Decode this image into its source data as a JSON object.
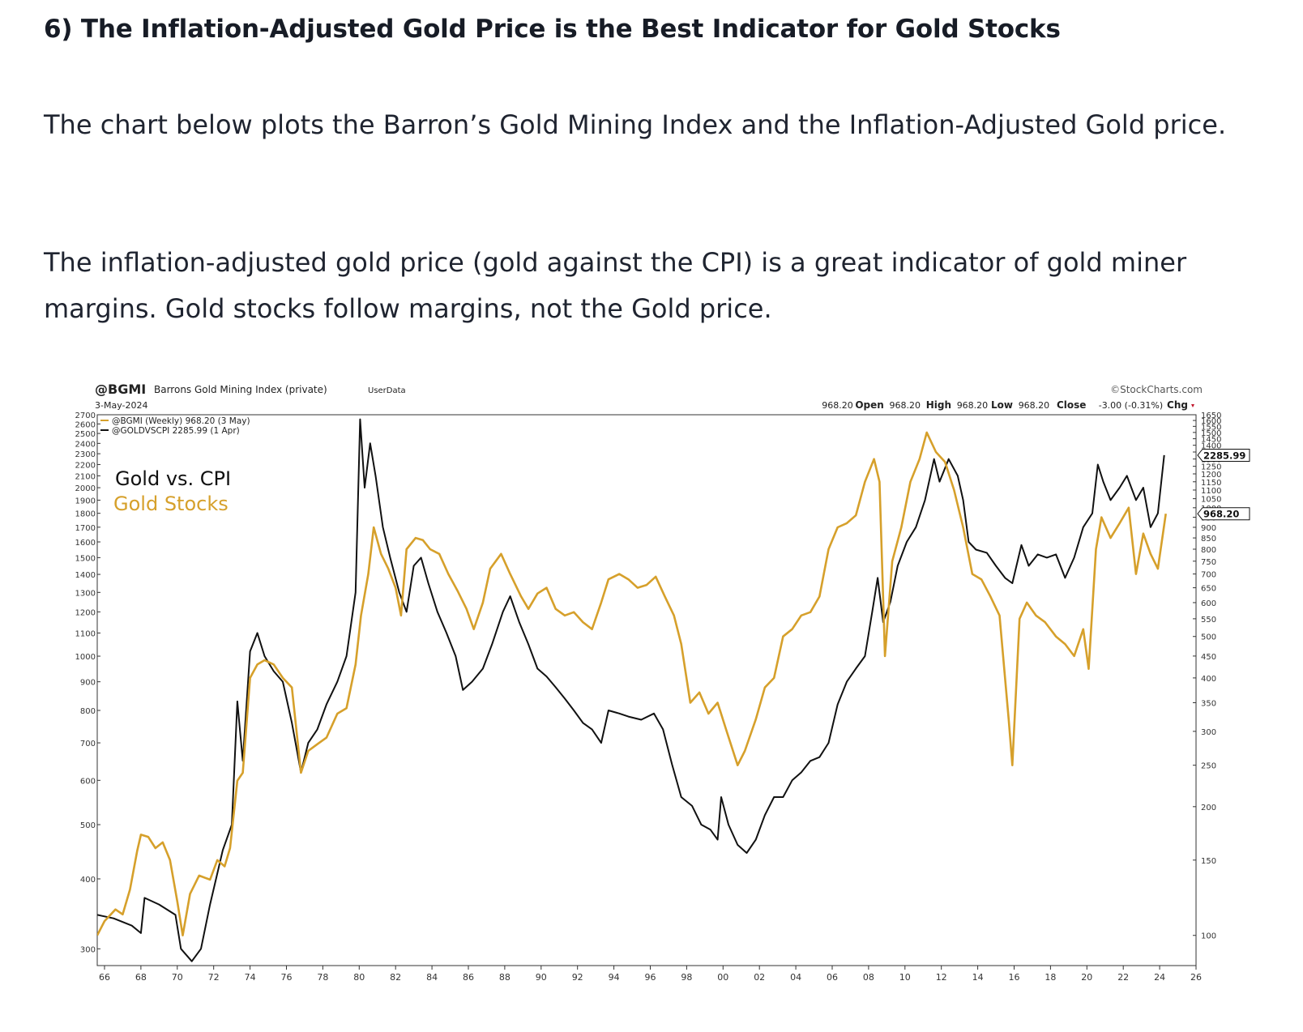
{
  "article": {
    "heading": "6) The Inflation-Adjusted Gold Price is the Best Indicator for Gold Stocks",
    "paragraph1": "The chart below plots the Barron’s Gold Mining Index and the Inflation-Adjusted Gold price.",
    "paragraph2": "The inflation-adjusted gold price (gold against the CPI) is a great indicator of gold miner margins. Gold stocks follow margins, not the Gold price."
  },
  "chart_header": {
    "symbol": "@BGMI",
    "name": "Barrons Gold Mining Index (private)",
    "source_tag": "UserData",
    "date": "3-May-2024",
    "watermark": "©StockCharts.com",
    "quote": [
      {
        "label": "Open",
        "value": "968.20"
      },
      {
        "label": "High",
        "value": "968.20"
      },
      {
        "label": "Low",
        "value": "968.20"
      },
      {
        "label": "Close",
        "value": "968.20"
      },
      {
        "label": "Chg",
        "value": "-3.00 (-0.31%)"
      }
    ],
    "legend_lines": [
      {
        "text": "@BGMI (Weekly) 968.20 (3 May)",
        "color": "#d6a02b"
      },
      {
        "text": "@GOLDVSCPI 2285.99 (1 Apr)",
        "color": "#111111"
      }
    ],
    "annotation_black": "Gold vs. CPI",
    "annotation_gold": "Gold Stocks",
    "right_tag_black": "2285.99",
    "right_tag_gold": "968.20"
  },
  "colors": {
    "gold": "#d6a02b",
    "black": "#111111",
    "axis": "#333333",
    "grid": "#e6e6e6",
    "down_arrow": "#c0132a"
  },
  "chart_data": {
    "type": "line",
    "title": "",
    "xlabel": "",
    "ylabel": "",
    "y_scale": "log",
    "grid": false,
    "x_ticks": [
      "66",
      "68",
      "70",
      "72",
      "74",
      "76",
      "78",
      "80",
      "82",
      "84",
      "86",
      "88",
      "90",
      "92",
      "94",
      "96",
      "98",
      "00",
      "02",
      "04",
      "06",
      "08",
      "10",
      "12",
      "14",
      "16",
      "18",
      "20",
      "22",
      "24",
      "26"
    ],
    "x_range": [
      1965.6,
      2026.0
    ],
    "left_axis": {
      "applies_to": "@GOLDVSCPI",
      "range": [
        280,
        2700
      ],
      "ticks": [
        300,
        400,
        500,
        600,
        700,
        800,
        900,
        1000,
        1100,
        1200,
        1300,
        1400,
        1500,
        1600,
        1700,
        1800,
        1900,
        2000,
        2100,
        2200,
        2300,
        2400,
        2500,
        2600,
        2700
      ]
    },
    "right_axis": {
      "applies_to": "@BGMI",
      "range": [
        85,
        1650
      ],
      "ticks": [
        100,
        150,
        200,
        250,
        300,
        350,
        400,
        450,
        500,
        550,
        600,
        650,
        700,
        750,
        800,
        850,
        900,
        950,
        1000,
        1050,
        1100,
        1150,
        1200,
        1250,
        1300,
        1350,
        1400,
        1450,
        1500,
        1550,
        1600,
        1650
      ]
    },
    "series": [
      {
        "name": "@GOLDVSCPI",
        "axis": "left",
        "color": "#111111",
        "points": [
          [
            1965.6,
            345
          ],
          [
            1966.5,
            340
          ],
          [
            1967.5,
            330
          ],
          [
            1968.0,
            320
          ],
          [
            1968.2,
            370
          ],
          [
            1969.0,
            360
          ],
          [
            1969.9,
            345
          ],
          [
            1970.2,
            300
          ],
          [
            1970.8,
            285
          ],
          [
            1971.3,
            300
          ],
          [
            1971.8,
            360
          ],
          [
            1972.5,
            450
          ],
          [
            1973.0,
            500
          ],
          [
            1973.3,
            830
          ],
          [
            1973.6,
            650
          ],
          [
            1974.0,
            1020
          ],
          [
            1974.4,
            1100
          ],
          [
            1974.8,
            1000
          ],
          [
            1975.3,
            940
          ],
          [
            1975.8,
            900
          ],
          [
            1976.3,
            760
          ],
          [
            1976.8,
            620
          ],
          [
            1977.2,
            700
          ],
          [
            1977.7,
            740
          ],
          [
            1978.2,
            820
          ],
          [
            1978.8,
            900
          ],
          [
            1979.3,
            1000
          ],
          [
            1979.8,
            1300
          ],
          [
            1980.05,
            2650
          ],
          [
            1980.3,
            2000
          ],
          [
            1980.6,
            2400
          ],
          [
            1980.9,
            2100
          ],
          [
            1981.3,
            1700
          ],
          [
            1981.7,
            1500
          ],
          [
            1982.2,
            1300
          ],
          [
            1982.6,
            1200
          ],
          [
            1983.0,
            1450
          ],
          [
            1983.4,
            1500
          ],
          [
            1983.8,
            1350
          ],
          [
            1984.3,
            1200
          ],
          [
            1984.8,
            1100
          ],
          [
            1985.3,
            1000
          ],
          [
            1985.7,
            870
          ],
          [
            1986.2,
            900
          ],
          [
            1986.8,
            950
          ],
          [
            1987.3,
            1050
          ],
          [
            1987.9,
            1200
          ],
          [
            1988.3,
            1280
          ],
          [
            1988.8,
            1150
          ],
          [
            1989.3,
            1050
          ],
          [
            1989.8,
            950
          ],
          [
            1990.3,
            920
          ],
          [
            1990.8,
            880
          ],
          [
            1991.3,
            840
          ],
          [
            1991.8,
            800
          ],
          [
            1992.3,
            760
          ],
          [
            1992.8,
            740
          ],
          [
            1993.3,
            700
          ],
          [
            1993.7,
            800
          ],
          [
            1994.3,
            790
          ],
          [
            1994.8,
            780
          ],
          [
            1995.5,
            770
          ],
          [
            1996.2,
            790
          ],
          [
            1996.7,
            740
          ],
          [
            1997.2,
            640
          ],
          [
            1997.7,
            560
          ],
          [
            1998.3,
            540
          ],
          [
            1998.8,
            500
          ],
          [
            1999.3,
            490
          ],
          [
            1999.7,
            470
          ],
          [
            1999.9,
            560
          ],
          [
            2000.3,
            500
          ],
          [
            2000.8,
            460
          ],
          [
            2001.3,
            445
          ],
          [
            2001.8,
            470
          ],
          [
            2002.3,
            520
          ],
          [
            2002.8,
            560
          ],
          [
            2003.3,
            560
          ],
          [
            2003.8,
            600
          ],
          [
            2004.3,
            620
          ],
          [
            2004.8,
            650
          ],
          [
            2005.3,
            660
          ],
          [
            2005.8,
            700
          ],
          [
            2006.3,
            820
          ],
          [
            2006.8,
            900
          ],
          [
            2007.3,
            950
          ],
          [
            2007.8,
            1000
          ],
          [
            2008.2,
            1200
          ],
          [
            2008.5,
            1380
          ],
          [
            2008.8,
            1150
          ],
          [
            2009.2,
            1250
          ],
          [
            2009.6,
            1450
          ],
          [
            2010.1,
            1600
          ],
          [
            2010.6,
            1700
          ],
          [
            2011.1,
            1900
          ],
          [
            2011.6,
            2250
          ],
          [
            2011.9,
            2050
          ],
          [
            2012.4,
            2250
          ],
          [
            2012.9,
            2100
          ],
          [
            2013.2,
            1900
          ],
          [
            2013.5,
            1600
          ],
          [
            2013.9,
            1550
          ],
          [
            2014.5,
            1530
          ],
          [
            2015.0,
            1450
          ],
          [
            2015.5,
            1380
          ],
          [
            2015.9,
            1350
          ],
          [
            2016.4,
            1580
          ],
          [
            2016.8,
            1450
          ],
          [
            2017.3,
            1520
          ],
          [
            2017.8,
            1500
          ],
          [
            2018.3,
            1520
          ],
          [
            2018.8,
            1380
          ],
          [
            2019.3,
            1500
          ],
          [
            2019.8,
            1700
          ],
          [
            2020.3,
            1800
          ],
          [
            2020.6,
            2200
          ],
          [
            2020.9,
            2050
          ],
          [
            2021.3,
            1900
          ],
          [
            2021.8,
            2000
          ],
          [
            2022.2,
            2100
          ],
          [
            2022.7,
            1900
          ],
          [
            2023.1,
            2000
          ],
          [
            2023.5,
            1700
          ],
          [
            2023.9,
            1800
          ],
          [
            2024.25,
            2285.99
          ]
        ]
      },
      {
        "name": "@BGMI",
        "axis": "right",
        "color": "#d6a02b",
        "points": [
          [
            1965.6,
            100
          ],
          [
            1966.0,
            108
          ],
          [
            1966.6,
            115
          ],
          [
            1967.0,
            112
          ],
          [
            1967.4,
            128
          ],
          [
            1967.8,
            158
          ],
          [
            1968.0,
            172
          ],
          [
            1968.4,
            170
          ],
          [
            1968.8,
            160
          ],
          [
            1969.2,
            165
          ],
          [
            1969.6,
            150
          ],
          [
            1970.0,
            120
          ],
          [
            1970.3,
            100
          ],
          [
            1970.7,
            125
          ],
          [
            1971.2,
            138
          ],
          [
            1971.8,
            135
          ],
          [
            1972.2,
            150
          ],
          [
            1972.6,
            145
          ],
          [
            1972.9,
            160
          ],
          [
            1973.3,
            230
          ],
          [
            1973.6,
            240
          ],
          [
            1974.0,
            400
          ],
          [
            1974.4,
            430
          ],
          [
            1974.8,
            440
          ],
          [
            1975.3,
            430
          ],
          [
            1975.8,
            400
          ],
          [
            1976.3,
            380
          ],
          [
            1976.8,
            240
          ],
          [
            1977.2,
            270
          ],
          [
            1977.7,
            280
          ],
          [
            1978.2,
            290
          ],
          [
            1978.8,
            330
          ],
          [
            1979.3,
            340
          ],
          [
            1979.8,
            430
          ],
          [
            1980.1,
            560
          ],
          [
            1980.5,
            700
          ],
          [
            1980.8,
            900
          ],
          [
            1981.2,
            780
          ],
          [
            1981.6,
            720
          ],
          [
            1982.0,
            650
          ],
          [
            1982.3,
            560
          ],
          [
            1982.6,
            800
          ],
          [
            1983.1,
            850
          ],
          [
            1983.5,
            840
          ],
          [
            1983.9,
            800
          ],
          [
            1984.4,
            780
          ],
          [
            1984.9,
            700
          ],
          [
            1985.4,
            640
          ],
          [
            1985.9,
            580
          ],
          [
            1986.3,
            520
          ],
          [
            1986.8,
            600
          ],
          [
            1987.2,
            720
          ],
          [
            1987.8,
            780
          ],
          [
            1988.3,
            700
          ],
          [
            1988.9,
            620
          ],
          [
            1989.3,
            580
          ],
          [
            1989.8,
            630
          ],
          [
            1990.3,
            650
          ],
          [
            1990.8,
            580
          ],
          [
            1991.3,
            560
          ],
          [
            1991.8,
            570
          ],
          [
            1992.3,
            540
          ],
          [
            1992.8,
            520
          ],
          [
            1993.3,
            600
          ],
          [
            1993.7,
            680
          ],
          [
            1994.3,
            700
          ],
          [
            1994.8,
            680
          ],
          [
            1995.3,
            650
          ],
          [
            1995.8,
            660
          ],
          [
            1996.3,
            690
          ],
          [
            1996.8,
            620
          ],
          [
            1997.3,
            560
          ],
          [
            1997.7,
            480
          ],
          [
            1998.2,
            350
          ],
          [
            1998.7,
            370
          ],
          [
            1999.2,
            330
          ],
          [
            1999.7,
            350
          ],
          [
            2000.2,
            300
          ],
          [
            2000.8,
            250
          ],
          [
            2001.2,
            270
          ],
          [
            2001.8,
            320
          ],
          [
            2002.3,
            380
          ],
          [
            2002.8,
            400
          ],
          [
            2003.3,
            500
          ],
          [
            2003.8,
            520
          ],
          [
            2004.3,
            560
          ],
          [
            2004.8,
            570
          ],
          [
            2005.3,
            620
          ],
          [
            2005.8,
            800
          ],
          [
            2006.3,
            900
          ],
          [
            2006.8,
            920
          ],
          [
            2007.3,
            960
          ],
          [
            2007.8,
            1150
          ],
          [
            2008.3,
            1300
          ],
          [
            2008.6,
            1150
          ],
          [
            2008.9,
            450
          ],
          [
            2009.3,
            750
          ],
          [
            2009.8,
            900
          ],
          [
            2010.3,
            1150
          ],
          [
            2010.8,
            1300
          ],
          [
            2011.2,
            1500
          ],
          [
            2011.7,
            1350
          ],
          [
            2012.2,
            1280
          ],
          [
            2012.7,
            1100
          ],
          [
            2013.2,
            900
          ],
          [
            2013.7,
            700
          ],
          [
            2014.2,
            680
          ],
          [
            2014.7,
            620
          ],
          [
            2015.2,
            560
          ],
          [
            2015.7,
            320
          ],
          [
            2015.9,
            250
          ],
          [
            2016.3,
            550
          ],
          [
            2016.7,
            600
          ],
          [
            2017.2,
            560
          ],
          [
            2017.7,
            540
          ],
          [
            2018.3,
            500
          ],
          [
            2018.8,
            480
          ],
          [
            2019.3,
            450
          ],
          [
            2019.8,
            520
          ],
          [
            2020.1,
            420
          ],
          [
            2020.5,
            800
          ],
          [
            2020.8,
            950
          ],
          [
            2021.3,
            850
          ],
          [
            2021.8,
            920
          ],
          [
            2022.3,
            1000
          ],
          [
            2022.7,
            700
          ],
          [
            2023.1,
            870
          ],
          [
            2023.5,
            780
          ],
          [
            2023.9,
            720
          ],
          [
            2024.34,
            968.2
          ]
        ]
      }
    ]
  }
}
